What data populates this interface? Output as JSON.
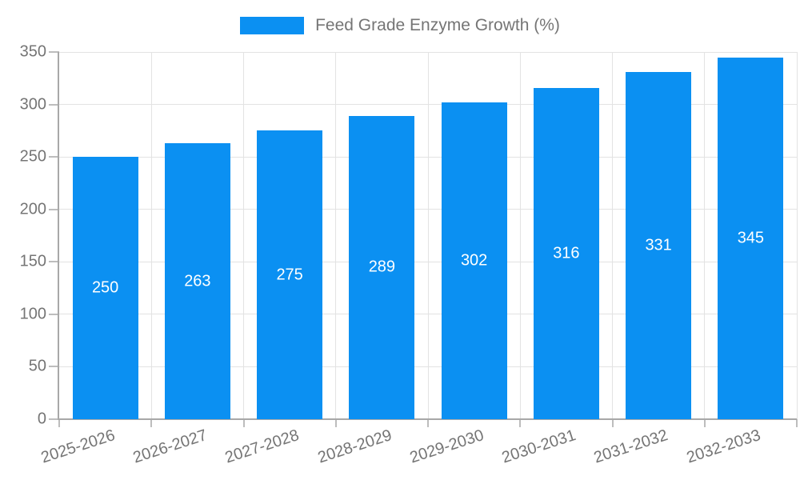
{
  "legend": {
    "label": "Feed Grade Enzyme Growth (%)"
  },
  "colors": {
    "bar": "#0b90f2",
    "text": "#757575",
    "grid": "#e3e3e3",
    "axis": "#a8a8a8",
    "tick": "#bdbdbd",
    "value_label": "#ffffff"
  },
  "chart_data": {
    "type": "bar",
    "title": "Feed Grade Enzyme Growth (%)",
    "categories": [
      "2025-2026",
      "2026-2027",
      "2027-2028",
      "2028-2029",
      "2029-2030",
      "2030-2031",
      "2031-2032",
      "2032-2033"
    ],
    "values": [
      250,
      263,
      275,
      289,
      302,
      316,
      331,
      345
    ],
    "bar_value_labels": [
      "250",
      "263",
      "275",
      "289",
      "302",
      "316",
      "331",
      "345"
    ],
    "xlabel": "",
    "ylabel": "",
    "ylim": [
      0,
      350
    ],
    "yticks": [
      0,
      50,
      100,
      150,
      200,
      250,
      300,
      350
    ],
    "grid": true,
    "legend_position": "top-center",
    "bar_label_style": "white-centered-inside"
  }
}
